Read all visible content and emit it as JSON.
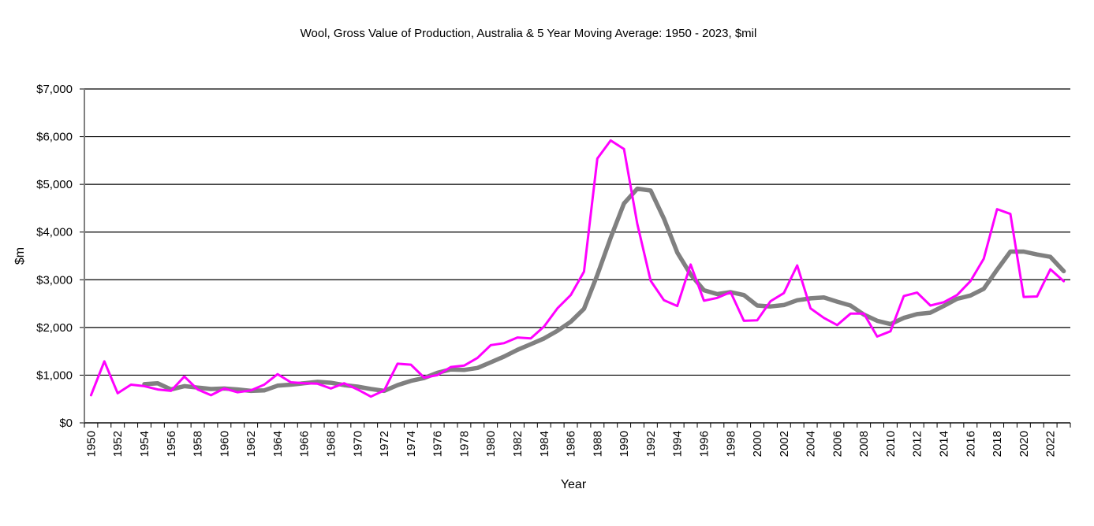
{
  "chart_data": {
    "type": "line",
    "title": "Wool,  Gross Value of Production,  Australia & 5 Year Moving Average: 1950 - 2023, $mil",
    "xlabel": "Year",
    "ylabel": "$m",
    "ylim": [
      0,
      7000
    ],
    "y_ticks": [
      0,
      1000,
      2000,
      3000,
      4000,
      5000,
      6000,
      7000
    ],
    "y_tick_labels": [
      "$0",
      "$1,000",
      "$2,000",
      "$3,000",
      "$4,000",
      "$5,000",
      "$6,000",
      "$7,000"
    ],
    "grid": "horizontal",
    "legend": "none",
    "x": [
      1950,
      1951,
      1952,
      1953,
      1954,
      1955,
      1956,
      1957,
      1958,
      1959,
      1960,
      1961,
      1962,
      1963,
      1964,
      1965,
      1966,
      1967,
      1968,
      1969,
      1970,
      1971,
      1972,
      1973,
      1974,
      1975,
      1976,
      1977,
      1978,
      1979,
      1980,
      1981,
      1982,
      1983,
      1984,
      1985,
      1986,
      1987,
      1988,
      1989,
      1990,
      1991,
      1992,
      1993,
      1994,
      1995,
      1996,
      1997,
      1998,
      1999,
      2000,
      2001,
      2002,
      2003,
      2004,
      2005,
      2006,
      2007,
      2008,
      2009,
      2010,
      2011,
      2012,
      2013,
      2014,
      2015,
      2016,
      2017,
      2018,
      2019,
      2020,
      2021,
      2022,
      2023
    ],
    "x_tick_labels": [
      "1950",
      "1952",
      "1954",
      "1956",
      "1958",
      "1960",
      "1962",
      "1964",
      "1966",
      "1968",
      "1970",
      "1972",
      "1974",
      "1976",
      "1978",
      "1980",
      "1982",
      "1984",
      "1986",
      "1988",
      "1990",
      "1992",
      "1994",
      "1996",
      "1998",
      "2000",
      "2002",
      "2004",
      "2006",
      "2008",
      "2010",
      "2012",
      "2014",
      "2016",
      "2018",
      "2020",
      "2022"
    ],
    "series": [
      {
        "name": "Gross Value of Production",
        "color": "#ff00ff",
        "values": [
          580,
          1290,
          620,
          800,
          770,
          700,
          670,
          970,
          700,
          580,
          720,
          640,
          680,
          800,
          1020,
          850,
          830,
          820,
          720,
          830,
          700,
          550,
          680,
          1240,
          1220,
          950,
          1000,
          1170,
          1200,
          1360,
          1630,
          1670,
          1790,
          1770,
          2020,
          2400,
          2680,
          3170,
          5540,
          5920,
          5740,
          4170,
          2980,
          2570,
          2450,
          3320,
          2560,
          2620,
          2740,
          2140,
          2150,
          2550,
          2720,
          3300,
          2400,
          2200,
          2050,
          2290,
          2290,
          1810,
          1920,
          2660,
          2730,
          2460,
          2530,
          2680,
          2970,
          3440,
          4480,
          4380,
          2640,
          2650,
          3220,
          2970
        ]
      },
      {
        "name": "5 Year Moving Average",
        "color": "#808080",
        "values": [
          null,
          null,
          null,
          null,
          810,
          830,
          700,
          770,
          740,
          710,
          720,
          700,
          670,
          680,
          780,
          800,
          830,
          860,
          840,
          790,
          760,
          710,
          670,
          790,
          880,
          940,
          1050,
          1120,
          1110,
          1150,
          1270,
          1390,
          1530,
          1650,
          1770,
          1930,
          2120,
          2390,
          3100,
          3880,
          4600,
          4910,
          4870,
          4280,
          3570,
          3110,
          2780,
          2700,
          2740,
          2680,
          2460,
          2440,
          2470,
          2570,
          2610,
          2630,
          2540,
          2460,
          2270,
          2140,
          2070,
          2200,
          2280,
          2310,
          2450,
          2600,
          2670,
          2810,
          3210,
          3590,
          3590,
          3530,
          3480,
          3180
        ]
      }
    ]
  }
}
